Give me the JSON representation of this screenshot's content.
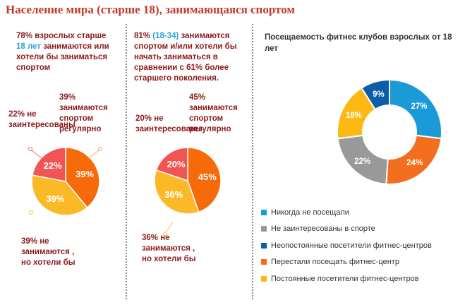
{
  "page": {
    "title": "Население мира (старше 18), занимающаяся спортом"
  },
  "panel1": {
    "note_parts": [
      "78% взрослых старше ",
      "18 лет",
      " занимаются или хотели бы заниматься спортом"
    ],
    "label_22": "22% не заинтересованы",
    "label_39_regular": "39% занимаются спортом регулярно",
    "label_39_want": "39% не занимаются , но хотели бы"
  },
  "panel2": {
    "note_parts": [
      "81% ",
      "(18-34)",
      " занимаются спортом и/или хотели бы начать заниматься в сравнении с 61% более старшего поколения."
    ],
    "label_20": "20% не заинтересованы",
    "label_45_regular": "45% занимаются спортом регулярно",
    "label_36_want": "36% не занимаются , но хотели бы"
  },
  "panel3": {
    "title": "Посещаемость фитнес клубов взрослых от 18 лет"
  },
  "colors": {
    "pie_red": "#f25353",
    "pie_orange": "#f76a0a",
    "pie_yellow": "#fcb927",
    "donut_lightblue": "#1a9ad6",
    "donut_orange": "#f36f1d",
    "donut_yellow": "#fdb913",
    "donut_gray": "#999999",
    "donut_darkblue": "#0d5ea8",
    "accent_text": "#8b1a1a",
    "title_red": "#c0392b"
  },
  "chart_data": [
    {
      "type": "pie",
      "title": "78% взрослых старше 18 лет занимаются или хотели бы заниматься спортом",
      "slices": [
        {
          "label": "22% не заинтересованы",
          "value": 22,
          "display": "22%",
          "color": "#f25353"
        },
        {
          "label": "39% занимаются спортом регулярно",
          "value": 39,
          "display": "39%",
          "color": "#f76a0a"
        },
        {
          "label": "39% не занимаются , но хотели бы",
          "value": 39,
          "display": "39%",
          "color": "#fcb927"
        }
      ]
    },
    {
      "type": "pie",
      "title": "81% (18-34) занимаются спортом и/или хотели бы начать заниматься в сравнении с 61% более старшего поколения.",
      "slices": [
        {
          "label": "20% не заинтересованы",
          "value": 20,
          "display": "20%",
          "color": "#f25353"
        },
        {
          "label": "45% занимаются спортом регулярно",
          "value": 45,
          "display": "45%",
          "color": "#f76a0a"
        },
        {
          "label": "36% не занимаются , но хотели бы",
          "value": 36,
          "display": "36%",
          "color": "#fcb927"
        }
      ]
    },
    {
      "type": "pie",
      "subtype": "donut",
      "title": "Посещаемость фитнес клубов взрослых от 18 лет",
      "slices": [
        {
          "label": "Никогда не посещали",
          "value": 27,
          "display": "27%",
          "color": "#1a9ad6"
        },
        {
          "label": "Перестали посещать фитнес-центр",
          "value": 24,
          "display": "24%",
          "color": "#f36f1d"
        },
        {
          "label": "Не заинтересованы в спорте",
          "value": 22,
          "display": "22%",
          "color": "#999999"
        },
        {
          "label": "Постоянные посетители фитнес-центров",
          "value": 18,
          "display": "18%",
          "color": "#fdb913"
        },
        {
          "label": "Неопостоянные посетители фитнес-центров",
          "value": 9,
          "display": "9%",
          "color": "#0d5ea8"
        }
      ],
      "legend": {
        "placement": "bottom",
        "order": [
          "Никогда не посещали",
          "Не заинтересованы в спорте",
          "Неопостоянные посетители фитнес-центров",
          "Перестали посещать фитнес-центр",
          "Постоянные посетители фитнес-центров"
        ]
      }
    }
  ]
}
